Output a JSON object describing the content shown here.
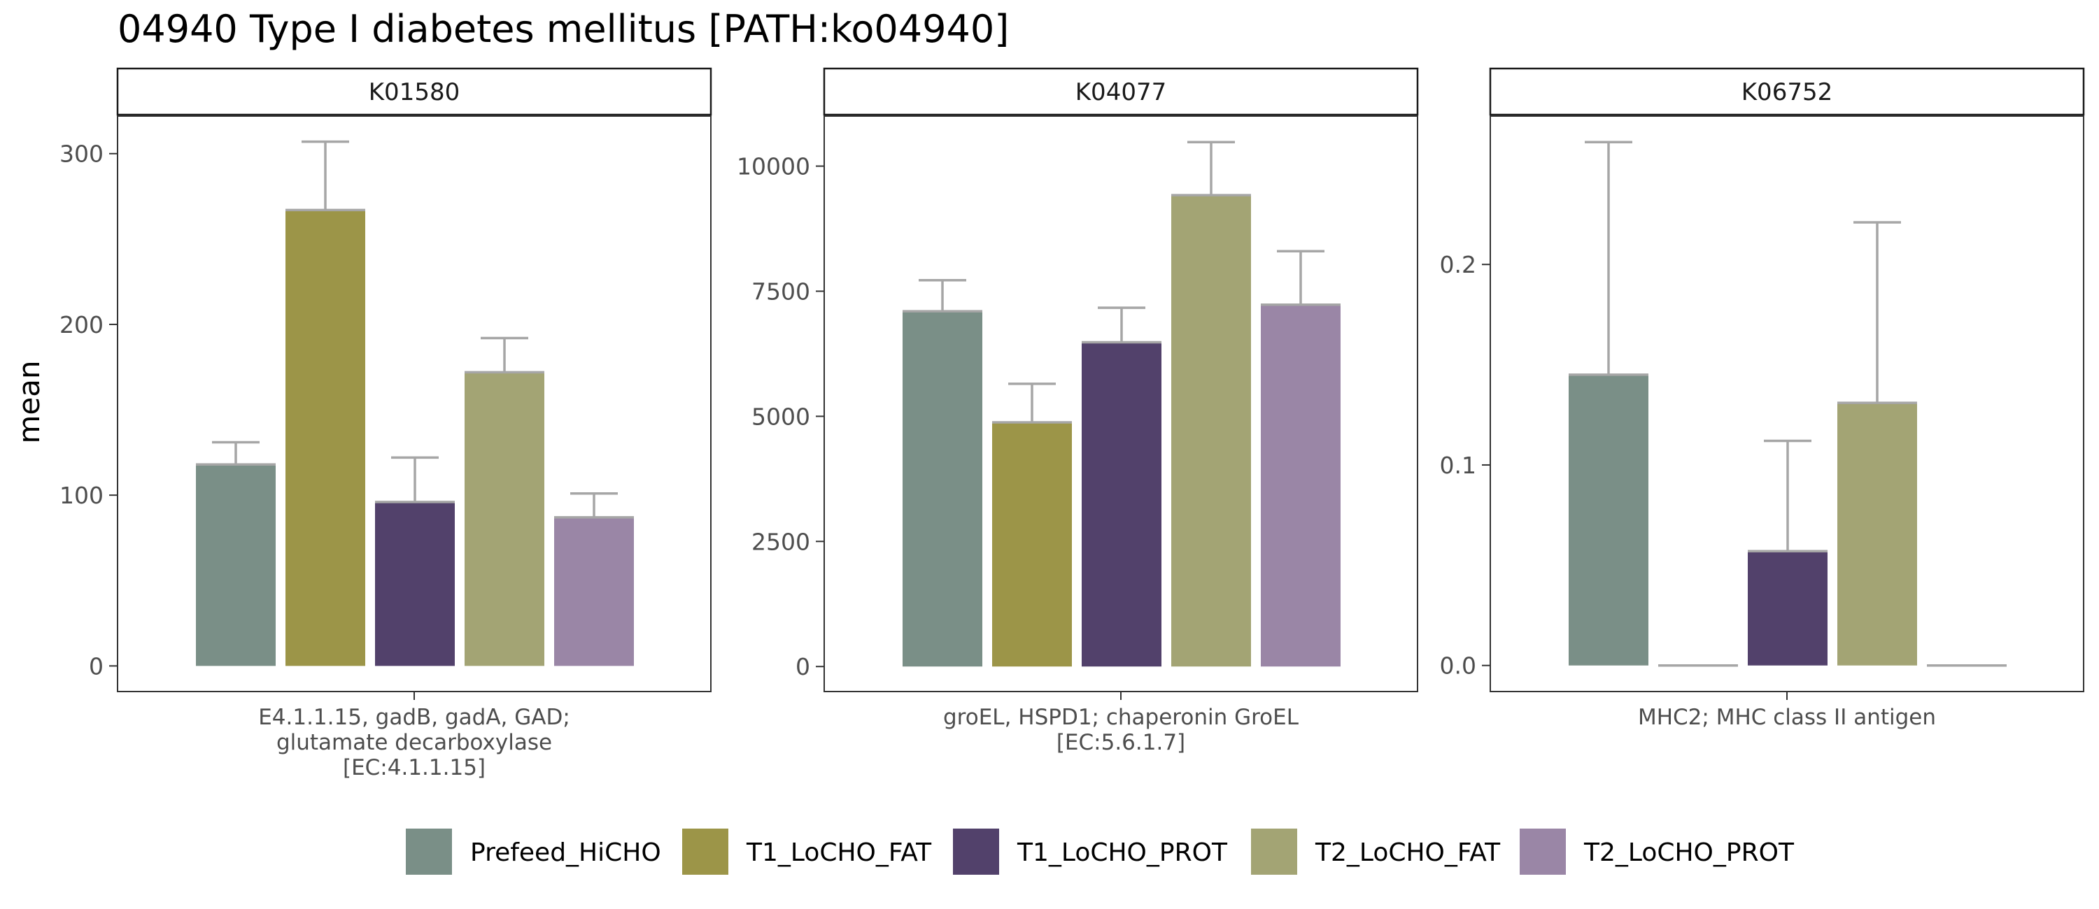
{
  "title": "04940 Type I diabetes mellitus [PATH:ko04940]",
  "ylabel": "mean",
  "colors": {
    "Prefeed_HiCHO": "#7a8f87",
    "T1_LoCHO_FAT": "#9c9548",
    "T1_LoCHO_PROT": "#52416b",
    "T2_LoCHO_FAT": "#a3a474",
    "T2_LoCHO_PROT": "#9a86a6",
    "errorbar": "#a6a6a6"
  },
  "legend": [
    "Prefeed_HiCHO",
    "T1_LoCHO_FAT",
    "T1_LoCHO_PROT",
    "T2_LoCHO_FAT",
    "T2_LoCHO_PROT"
  ],
  "chart_data": [
    {
      "type": "bar",
      "panel": "K01580",
      "xlabel_lines": [
        "E4.1.1.15, gadB, gadA, GAD;",
        "glutamate decarboxylase",
        "[EC:4.1.1.15]"
      ],
      "ylim": [
        -15,
        322
      ],
      "yticks": [
        0,
        100,
        200,
        300
      ],
      "ytick_labels": [
        "0",
        "100",
        "200",
        "300"
      ],
      "series": [
        {
          "name": "Prefeed_HiCHO",
          "value": 118,
          "error_upper": 131
        },
        {
          "name": "T1_LoCHO_FAT",
          "value": 267,
          "error_upper": 307
        },
        {
          "name": "T1_LoCHO_PROT",
          "value": 96,
          "error_upper": 122
        },
        {
          "name": "T2_LoCHO_FAT",
          "value": 172,
          "error_upper": 192
        },
        {
          "name": "T2_LoCHO_PROT",
          "value": 87,
          "error_upper": 101
        }
      ]
    },
    {
      "type": "bar",
      "panel": "K04077",
      "xlabel_lines": [
        "groEL, HSPD1; chaperonin GroEL",
        "[EC:5.6.1.7]"
      ],
      "ylim": [
        -500,
        11000
      ],
      "yticks": [
        0,
        2500,
        5000,
        7500,
        10000
      ],
      "ytick_labels": [
        "0",
        "2500",
        "5000",
        "7500",
        "10000"
      ],
      "series": [
        {
          "name": "Prefeed_HiCHO",
          "value": 7100,
          "error_upper": 7720
        },
        {
          "name": "T1_LoCHO_FAT",
          "value": 4880,
          "error_upper": 5650
        },
        {
          "name": "T1_LoCHO_PROT",
          "value": 6480,
          "error_upper": 7170
        },
        {
          "name": "T2_LoCHO_FAT",
          "value": 9420,
          "error_upper": 10480
        },
        {
          "name": "T2_LoCHO_PROT",
          "value": 7230,
          "error_upper": 8300
        }
      ]
    },
    {
      "type": "bar",
      "panel": "K06752",
      "xlabel_lines": [
        "MHC2; MHC class II antigen"
      ],
      "ylim": [
        -0.013,
        0.274
      ],
      "yticks": [
        0.0,
        0.1,
        0.2
      ],
      "ytick_labels": [
        "0.0",
        "0.1",
        "0.2"
      ],
      "series": [
        {
          "name": "Prefeed_HiCHO",
          "value": 0.145,
          "error_upper": 0.261
        },
        {
          "name": "T1_LoCHO_FAT",
          "value": 0.0,
          "error_upper": 0.0
        },
        {
          "name": "T1_LoCHO_PROT",
          "value": 0.057,
          "error_upper": 0.112
        },
        {
          "name": "T2_LoCHO_FAT",
          "value": 0.131,
          "error_upper": 0.221
        },
        {
          "name": "T2_LoCHO_PROT",
          "value": 0.0,
          "error_upper": 0.0
        }
      ]
    }
  ]
}
